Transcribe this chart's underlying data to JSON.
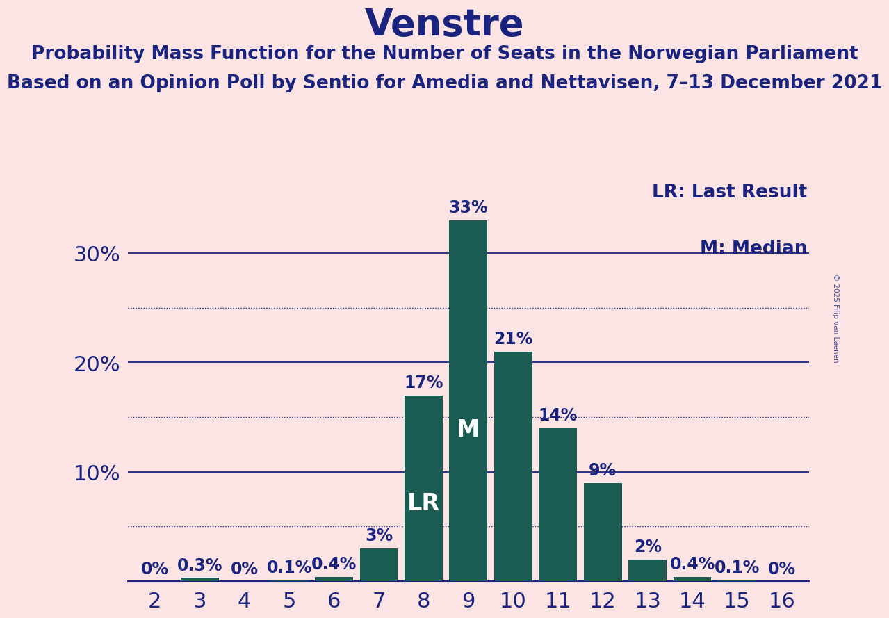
{
  "title": "Venstre",
  "subtitle1": "Probability Mass Function for the Number of Seats in the Norwegian Parliament",
  "subtitle2": "Based on an Opinion Poll by Sentio for Amedia and Nettavisen, 7–13 December 2021",
  "copyright": "© 2025 Filip van Laenen",
  "categories": [
    2,
    3,
    4,
    5,
    6,
    7,
    8,
    9,
    10,
    11,
    12,
    13,
    14,
    15,
    16
  ],
  "values": [
    0.0,
    0.3,
    0.0,
    0.1,
    0.4,
    3.0,
    17.0,
    33.0,
    21.0,
    14.0,
    9.0,
    2.0,
    0.4,
    0.1,
    0.0
  ],
  "bar_color": "#1a5c52",
  "background_color": "#fce4e4",
  "text_color": "#1a237e",
  "grid_color_solid": "#1a237e",
  "grid_color_dotted": "#1a237e",
  "yticks": [
    10,
    20,
    30
  ],
  "ylim": [
    0,
    37
  ],
  "lr_seat": 8,
  "median_seat": 9,
  "legend_lr": "LR: Last Result",
  "legend_m": "M: Median",
  "label_lr": "LR",
  "label_m": "M",
  "title_fontsize": 38,
  "subtitle_fontsize": 19,
  "tick_fontsize": 22,
  "bar_label_fontsize": 17,
  "legend_fontsize": 19,
  "annotation_fontsize": 24
}
